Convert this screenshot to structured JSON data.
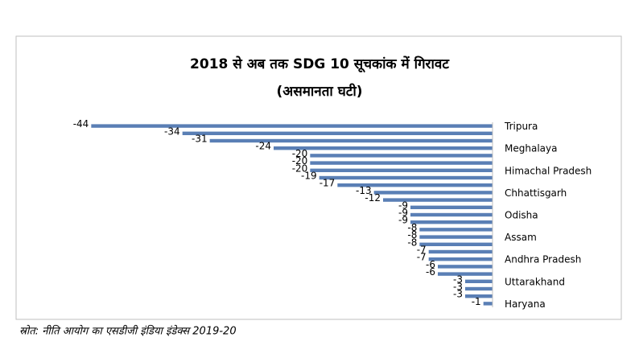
{
  "chart_data": {
    "type": "barh",
    "title": "2018 से अब तक SDG 10 सूचकांक में गिरावट",
    "subtitle": "(असमानता घटी)",
    "categories": [
      "Tripura",
      null,
      null,
      "Meghalaya",
      null,
      null,
      "Himachal Pradesh",
      null,
      null,
      "Chhattisgarh",
      null,
      null,
      "Odisha",
      null,
      null,
      "Assam",
      null,
      null,
      "Andhra Pradesh",
      null,
      null,
      "Uttarakhand",
      null,
      null,
      "Haryana"
    ],
    "values": [
      -44,
      -34,
      -31,
      -24,
      -20,
      -20,
      -20,
      -19,
      -17,
      -13,
      -12,
      -9,
      -9,
      -9,
      -8,
      -8,
      -8,
      -7,
      -7,
      -6,
      -6,
      -3,
      -3,
      -3,
      -1
    ],
    "color": "#5a7fb5",
    "xlim": [
      -48,
      0
    ],
    "source": "स्रोत: नीति आयोग का एसडीजी इंडिया इंडेक्स 2019-20"
  }
}
